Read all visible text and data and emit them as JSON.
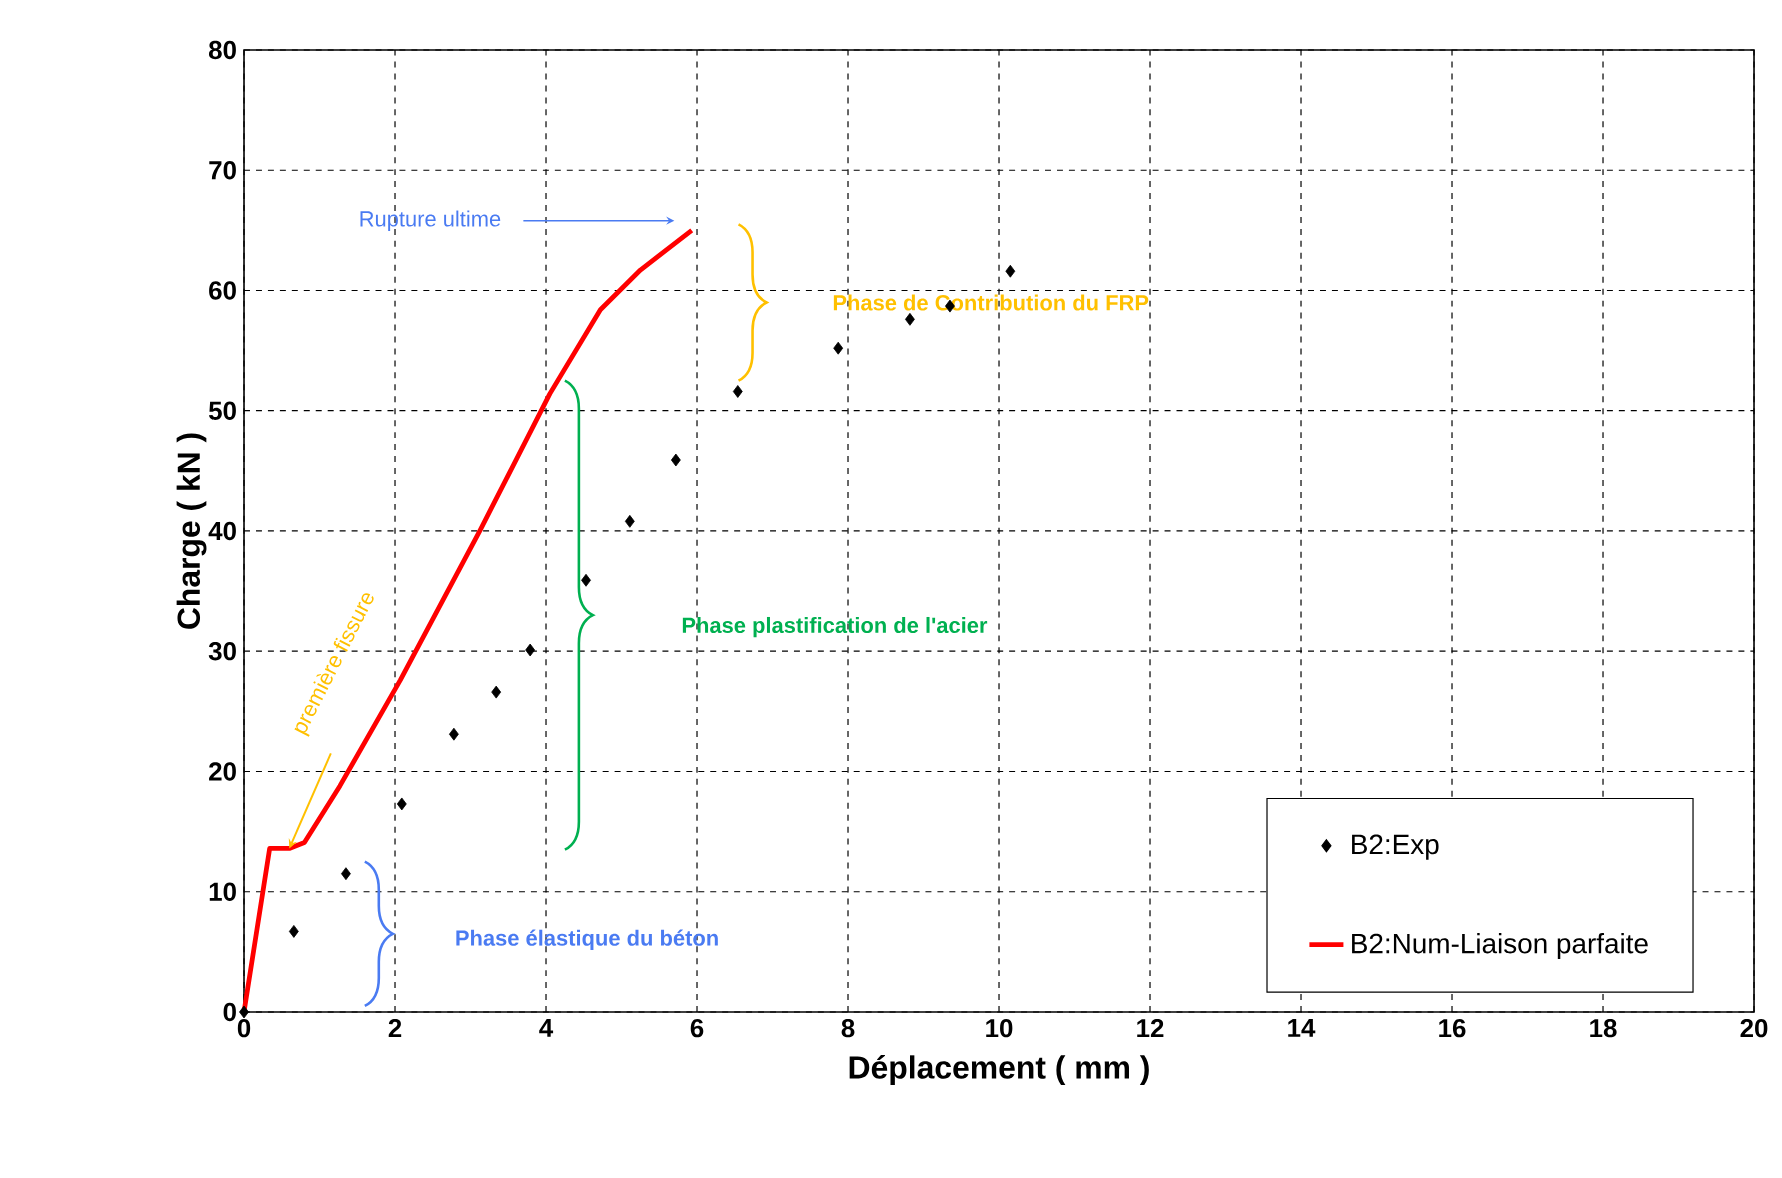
{
  "chart_data": {
    "type": "scatter",
    "xlabel": "Déplacement ( mm )",
    "ylabel": "Charge ( kN )",
    "xlim": [
      0,
      20
    ],
    "ylim": [
      0,
      80
    ],
    "xticks": [
      0,
      2,
      4,
      6,
      8,
      10,
      12,
      14,
      16,
      18,
      20
    ],
    "yticks": [
      0,
      10,
      20,
      30,
      40,
      50,
      60,
      70,
      80
    ],
    "grid": true,
    "legend": "bottom right",
    "series": [
      {
        "name": "B2:Exp",
        "marker": "diamond",
        "color": "#000000",
        "x": [
          0,
          0.66,
          1.35,
          2.09,
          2.78,
          3.34,
          3.79,
          4.53,
          5.11,
          5.72,
          6.54,
          7.87,
          8.82,
          9.35,
          10.15
        ],
        "values": [
          0,
          6.7,
          11.5,
          17.3,
          23.1,
          26.6,
          30.1,
          35.9,
          40.8,
          45.9,
          51.6,
          55.2,
          57.6,
          58.7,
          61.6
        ]
      },
      {
        "name": "B2:Num-Liaison parfaite",
        "type": "line",
        "marker": "none",
        "line_style": "solid",
        "color": "#ff0000",
        "x": [
          0,
          0.34,
          0.6,
          0.8,
          1.27,
          2.07,
          3.13,
          4.05,
          4.72,
          5.25,
          5.93
        ],
        "values": [
          0,
          13.6,
          13.6,
          14.1,
          18.8,
          27.6,
          40.1,
          51.4,
          58.4,
          61.7,
          65
        ]
      }
    ],
    "annotations": [
      "Rupture ultime",
      "Phase de Contribution du FRP",
      "Phase plastification de l'acier",
      {
        "text": "première fissure",
        "x": 0.6,
        "y": 13.6
      },
      "Phase élastique du béton"
    ]
  }
}
